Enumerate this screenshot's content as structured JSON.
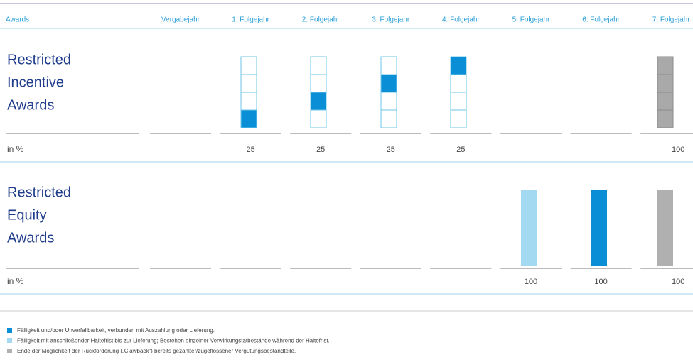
{
  "header": {
    "label": "Awards",
    "columns": [
      "Vergabejahr",
      "1. Folgejahr",
      "2. Folgejahr",
      "3. Folgejahr",
      "4. Folgejahr",
      "5. Folgejahr",
      "6. Folgejahr",
      "7. Folgejahr"
    ]
  },
  "sections": [
    {
      "title": [
        "Restricted",
        "Incentive",
        "Awards"
      ],
      "unit": "in %",
      "values": [
        null,
        25,
        25,
        25,
        25,
        null,
        null,
        100
      ]
    },
    {
      "title": [
        "Restricted",
        "Equity",
        "Awards"
      ],
      "unit": "in %",
      "values": [
        null,
        null,
        null,
        null,
        null,
        100,
        100,
        100
      ]
    }
  ],
  "legend": [
    "Fälligkeit und/oder Unverfallbarkeit, verbunden mit Auszahlung oder Lieferung.",
    "Fälligkeit mit anschließender Haltefrist bis zur Lieferung; Bestehen einzelner Verwirkungstatbestände während der Haltefrist.",
    "Ende der Möglichkeit der Rückforderung („Clawback“) bereits gezahlter/zugeflossener Vergütungsbestandteile."
  ]
}
